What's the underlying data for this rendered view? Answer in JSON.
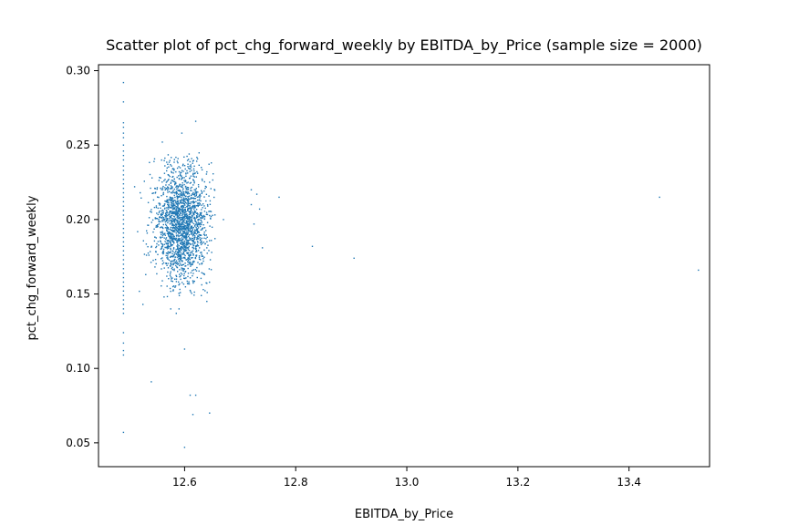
{
  "chart_data": {
    "type": "scatter",
    "title": "Scatter plot of pct_chg_forward_weekly by EBITDA_by_Price (sample size = 2000)",
    "xlabel": "EBITDA_by_Price",
    "ylabel": "pct_chg_forward_weekly",
    "xlim": [
      12.445,
      13.545
    ],
    "ylim": [
      0.034,
      0.304
    ],
    "xticks": [
      12.6,
      12.8,
      13.0,
      13.2,
      13.4
    ],
    "xtick_labels": [
      "12.6",
      "12.8",
      "13.0",
      "13.2",
      "13.4"
    ],
    "yticks": [
      0.05,
      0.1,
      0.15,
      0.2,
      0.25,
      0.3
    ],
    "ytick_labels": [
      "0.05",
      "0.10",
      "0.15",
      "0.20",
      "0.25",
      "0.30"
    ],
    "grid": false,
    "point_color": "#1f77b4",
    "sample_size": 2000,
    "points": [
      [
        12.49,
        0.292
      ],
      [
        12.49,
        0.279
      ],
      [
        12.49,
        0.265
      ],
      [
        12.49,
        0.262
      ],
      [
        12.49,
        0.258
      ],
      [
        12.49,
        0.255
      ],
      [
        12.49,
        0.25
      ],
      [
        12.49,
        0.246
      ],
      [
        12.49,
        0.243
      ],
      [
        12.49,
        0.24
      ],
      [
        12.49,
        0.236
      ],
      [
        12.49,
        0.233
      ],
      [
        12.49,
        0.23
      ],
      [
        12.49,
        0.227
      ],
      [
        12.49,
        0.224
      ],
      [
        12.49,
        0.221
      ],
      [
        12.49,
        0.218
      ],
      [
        12.49,
        0.215
      ],
      [
        12.49,
        0.212
      ],
      [
        12.49,
        0.209
      ],
      [
        12.49,
        0.206
      ],
      [
        12.49,
        0.203
      ],
      [
        12.49,
        0.2
      ],
      [
        12.49,
        0.197
      ],
      [
        12.49,
        0.194
      ],
      [
        12.49,
        0.191
      ],
      [
        12.49,
        0.188
      ],
      [
        12.49,
        0.185
      ],
      [
        12.49,
        0.182
      ],
      [
        12.49,
        0.179
      ],
      [
        12.49,
        0.176
      ],
      [
        12.49,
        0.173
      ],
      [
        12.49,
        0.17
      ],
      [
        12.49,
        0.167
      ],
      [
        12.49,
        0.164
      ],
      [
        12.49,
        0.161
      ],
      [
        12.49,
        0.158
      ],
      [
        12.49,
        0.155
      ],
      [
        12.49,
        0.152
      ],
      [
        12.49,
        0.149
      ],
      [
        12.49,
        0.146
      ],
      [
        12.49,
        0.143
      ],
      [
        12.49,
        0.14
      ],
      [
        12.49,
        0.137
      ],
      [
        12.49,
        0.124
      ],
      [
        12.49,
        0.117
      ],
      [
        12.49,
        0.112
      ],
      [
        12.49,
        0.109
      ],
      [
        12.49,
        0.057
      ],
      [
        12.54,
        0.091
      ],
      [
        12.6,
        0.047
      ],
      [
        12.6,
        0.113
      ],
      [
        12.61,
        0.082
      ],
      [
        12.62,
        0.082
      ],
      [
        12.615,
        0.069
      ],
      [
        12.645,
        0.07
      ],
      [
        12.62,
        0.266
      ],
      [
        12.595,
        0.258
      ],
      [
        12.56,
        0.252
      ],
      [
        12.545,
        0.239
      ],
      [
        12.52,
        0.218
      ],
      [
        12.51,
        0.222
      ],
      [
        12.525,
        0.143
      ],
      [
        12.53,
        0.163
      ],
      [
        12.64,
        0.145
      ],
      [
        12.575,
        0.14
      ],
      [
        12.59,
        0.14
      ],
      [
        12.585,
        0.137
      ],
      [
        12.63,
        0.235
      ],
      [
        12.64,
        0.232
      ],
      [
        12.645,
        0.225
      ],
      [
        12.67,
        0.2
      ],
      [
        12.72,
        0.22
      ],
      [
        12.73,
        0.217
      ],
      [
        12.72,
        0.21
      ],
      [
        12.735,
        0.207
      ],
      [
        12.725,
        0.197
      ],
      [
        12.77,
        0.215
      ],
      [
        12.74,
        0.181
      ],
      [
        12.83,
        0.182
      ],
      [
        12.905,
        0.174
      ],
      [
        13.455,
        0.215
      ],
      [
        13.525,
        0.166
      ]
    ],
    "cluster": {
      "center_x": 12.595,
      "center_y": 0.198,
      "sd_x": 0.023,
      "sd_y": 0.019,
      "count": 1900
    }
  }
}
